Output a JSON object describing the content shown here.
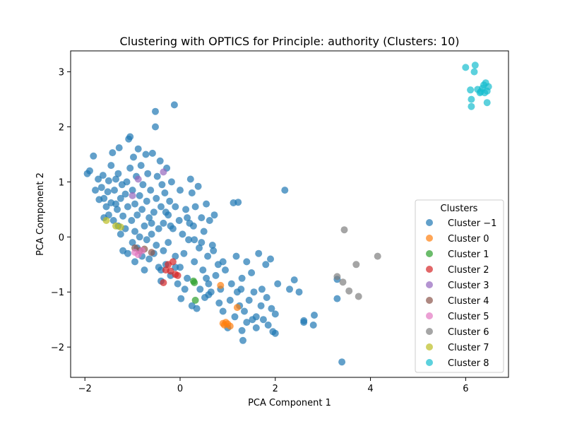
{
  "chart_data": {
    "type": "scatter",
    "title": "Clustering with OPTICS for Principle: authority (Clusters: 10)",
    "xlabel": "PCA Component 1",
    "ylabel": "PCA Component 2",
    "xlim": [
      -2.3,
      6.9
    ],
    "ylim": [
      -2.55,
      3.38
    ],
    "xticks": [
      -2,
      0,
      2,
      4,
      6
    ],
    "yticks": [
      -2,
      -1,
      0,
      1,
      2,
      3
    ],
    "xtick_labels": [
      "−2",
      "0",
      "2",
      "4",
      "6"
    ],
    "ytick_labels": [
      "−2",
      "−1",
      "0",
      "1",
      "2",
      "3"
    ],
    "grid": false,
    "legend": {
      "title": "Clusters",
      "placement": "lower-right"
    },
    "series": [
      {
        "name": "Cluster −1",
        "color": "#1f77b4",
        "points": [
          [
            -1.95,
            1.15
          ],
          [
            -1.9,
            1.2
          ],
          [
            -1.82,
            1.47
          ],
          [
            -1.78,
            0.85
          ],
          [
            -1.72,
            1.05
          ],
          [
            -1.7,
            0.68
          ],
          [
            -1.65,
            0.9
          ],
          [
            -1.62,
            1.12
          ],
          [
            -1.6,
            0.7
          ],
          [
            -1.55,
            0.55
          ],
          [
            -1.52,
            0.82
          ],
          [
            -1.5,
            1.02
          ],
          [
            -1.5,
            0.4
          ],
          [
            -1.45,
            0.62
          ],
          [
            -1.45,
            1.3
          ],
          [
            -1.42,
            1.53
          ],
          [
            -1.4,
            0.3
          ],
          [
            -1.38,
            0.85
          ],
          [
            -1.35,
            1.05
          ],
          [
            -1.32,
            0.5
          ],
          [
            -1.3,
            0.2
          ],
          [
            -1.3,
            1.15
          ],
          [
            -1.28,
            1.62
          ],
          [
            -1.25,
            0.7
          ],
          [
            -1.25,
            0.05
          ],
          [
            -1.22,
            0.95
          ],
          [
            -1.2,
            0.38
          ],
          [
            -1.2,
            -0.25
          ],
          [
            -1.15,
            0.78
          ],
          [
            -1.15,
            0.15
          ],
          [
            -1.12,
            1.0
          ],
          [
            -1.1,
            0.55
          ],
          [
            -1.08,
            1.78
          ],
          [
            -1.05,
            1.82
          ],
          [
            -1.05,
            1.25
          ],
          [
            -1.02,
            0.3
          ],
          [
            -1.0,
            0.85
          ],
          [
            -1.0,
            -0.1
          ],
          [
            -0.98,
            1.45
          ],
          [
            -0.95,
            0.6
          ],
          [
            -0.95,
            0.1
          ],
          [
            -0.95,
            -0.45
          ],
          [
            -0.92,
            1.1
          ],
          [
            -0.9,
            0.4
          ],
          [
            -0.9,
            -0.2
          ],
          [
            -0.88,
            1.6
          ],
          [
            -0.85,
            0.75
          ],
          [
            -0.85,
            0.0
          ],
          [
            -0.82,
            1.3
          ],
          [
            -0.8,
            0.5
          ],
          [
            -0.8,
            -0.35
          ],
          [
            -0.78,
            0.95
          ],
          [
            -0.75,
            0.2
          ],
          [
            -0.75,
            -0.6
          ],
          [
            -0.72,
            1.5
          ],
          [
            -0.7,
            0.65
          ],
          [
            -0.7,
            -0.05
          ],
          [
            -0.68,
            1.15
          ],
          [
            -0.65,
            0.35
          ],
          [
            -0.65,
            -0.4
          ],
          [
            -0.62,
            0.85
          ],
          [
            -0.6,
            0.05
          ],
          [
            -0.58,
            1.52
          ],
          [
            -0.55,
            0.45
          ],
          [
            -0.55,
            -0.3
          ],
          [
            -0.52,
            2.0
          ],
          [
            -0.52,
            2.28
          ],
          [
            -0.5,
            0.7
          ],
          [
            -0.48,
            1.1
          ],
          [
            -0.45,
            0.15
          ],
          [
            -0.45,
            -0.55
          ],
          [
            -0.42,
            1.38
          ],
          [
            -0.4,
            0.55
          ],
          [
            -0.4,
            -0.8
          ],
          [
            -0.38,
            0.95
          ],
          [
            -0.35,
            0.25
          ],
          [
            -0.35,
            -0.25
          ],
          [
            -0.32,
            0.8
          ],
          [
            -0.3,
            -0.5
          ],
          [
            -0.28,
            1.25
          ],
          [
            -0.25,
            0.4
          ],
          [
            -0.25,
            -0.1
          ],
          [
            -0.22,
            0.65
          ],
          [
            -0.2,
            -0.7
          ],
          [
            -0.18,
            1.0
          ],
          [
            -0.15,
            0.15
          ],
          [
            -0.12,
            2.4
          ],
          [
            -0.1,
            0.55
          ],
          [
            -0.1,
            -0.35
          ],
          [
            -0.05,
            -0.85
          ],
          [
            -0.02,
            0.3
          ],
          [
            0.0,
            -0.55
          ],
          [
            0.02,
            -1.12
          ],
          [
            0.05,
            0.05
          ],
          [
            0.08,
            -0.3
          ],
          [
            0.12,
            0.5
          ],
          [
            0.15,
            -0.75
          ],
          [
            0.18,
            -0.05
          ],
          [
            0.22,
            1.05
          ],
          [
            0.25,
            0.8
          ],
          [
            0.25,
            -1.25
          ],
          [
            0.28,
            0.2
          ],
          [
            0.3,
            -0.45
          ],
          [
            0.32,
            0.55
          ],
          [
            0.35,
            -1.3
          ],
          [
            0.38,
            0.92
          ],
          [
            0.4,
            -0.2
          ],
          [
            0.42,
            -0.95
          ],
          [
            0.45,
            0.35
          ],
          [
            0.48,
            -0.6
          ],
          [
            0.5,
            0.1
          ],
          [
            0.52,
            -1.1
          ],
          [
            0.55,
            0.6
          ],
          [
            0.58,
            -0.35
          ],
          [
            0.6,
            -0.85
          ],
          [
            0.62,
            0.3
          ],
          [
            0.65,
            -1.0
          ],
          [
            0.68,
            -0.15
          ],
          [
            0.72,
            0.4
          ],
          [
            0.75,
            -0.7
          ],
          [
            0.8,
            -0.5
          ],
          [
            0.82,
            -1.2
          ],
          [
            0.85,
            -0.95
          ],
          [
            0.9,
            -1.35
          ],
          [
            0.95,
            -0.6
          ],
          [
            1.0,
            -1.65
          ],
          [
            1.05,
            -1.15
          ],
          [
            1.08,
            -0.85
          ],
          [
            1.12,
            0.62
          ],
          [
            1.15,
            -1.45
          ],
          [
            1.18,
            -0.35
          ],
          [
            1.2,
            -1.0
          ],
          [
            1.22,
            0.63
          ],
          [
            1.25,
            -1.25
          ],
          [
            1.28,
            -0.95
          ],
          [
            1.3,
            -1.7
          ],
          [
            1.32,
            -1.88
          ],
          [
            1.35,
            -1.35
          ],
          [
            1.4,
            -0.45
          ],
          [
            1.45,
            -1.15
          ],
          [
            1.5,
            -0.65
          ],
          [
            1.52,
            -1.5
          ],
          [
            1.55,
            -1.0
          ],
          [
            1.6,
            -1.65
          ],
          [
            1.65,
            -0.3
          ],
          [
            1.7,
            -1.25
          ],
          [
            1.72,
            -0.95
          ],
          [
            1.75,
            -1.5
          ],
          [
            1.8,
            -0.5
          ],
          [
            1.82,
            -1.1
          ],
          [
            1.85,
            -1.6
          ],
          [
            1.9,
            -0.4
          ],
          [
            1.92,
            -1.3
          ],
          [
            1.95,
            -1.72
          ],
          [
            2.0,
            -1.75
          ],
          [
            2.0,
            -1.4
          ],
          [
            2.05,
            -0.85
          ],
          [
            2.2,
            0.85
          ],
          [
            2.4,
            -0.78
          ],
          [
            2.5,
            -1.0
          ],
          [
            2.6,
            -1.55
          ],
          [
            2.6,
            -1.52
          ],
          [
            2.8,
            -1.6
          ],
          [
            2.82,
            -1.42
          ],
          [
            3.3,
            -0.77
          ],
          [
            3.3,
            -1.12
          ],
          [
            3.4,
            -2.27
          ],
          [
            -0.5,
            -0.15
          ],
          [
            -0.4,
            -0.6
          ],
          [
            0.1,
            -0.95
          ],
          [
            0.2,
            0.25
          ],
          [
            0.0,
            0.85
          ],
          [
            0.3,
            -0.05
          ],
          [
            0.45,
            -0.1
          ],
          [
            -1.6,
            0.35
          ],
          [
            -1.35,
            0.6
          ],
          [
            -1.1,
            -0.3
          ],
          [
            -0.6,
            0.25
          ],
          [
            -0.3,
            0.45
          ],
          [
            0.6,
            -1.05
          ],
          [
            1.4,
            -1.55
          ],
          [
            1.6,
            -1.45
          ],
          [
            0.7,
            -0.25
          ],
          [
            0.55,
            -0.75
          ],
          [
            -0.2,
            0.2
          ],
          [
            0.15,
            0.35
          ],
          [
            -0.1,
            -0.55
          ],
          [
            0.9,
            -0.45
          ],
          [
            1.3,
            -0.75
          ],
          [
            2.3,
            -0.95
          ]
        ]
      },
      {
        "name": "Cluster 0",
        "color": "#ff7f0e",
        "points": [
          [
            0.85,
            -0.88
          ],
          [
            0.9,
            -1.57
          ],
          [
            0.93,
            -1.6
          ],
          [
            0.96,
            -1.55
          ],
          [
            1.0,
            -1.58
          ],
          [
            1.05,
            -1.62
          ],
          [
            1.2,
            -1.28
          ]
        ]
      },
      {
        "name": "Cluster 1",
        "color": "#2ca02c",
        "points": [
          [
            0.28,
            -0.8
          ],
          [
            0.3,
            -0.83
          ],
          [
            0.32,
            -1.15
          ]
        ]
      },
      {
        "name": "Cluster 2",
        "color": "#d62728",
        "points": [
          [
            -0.35,
            -0.83
          ],
          [
            -0.3,
            -0.6
          ],
          [
            -0.25,
            -0.5
          ],
          [
            -0.2,
            -0.62
          ],
          [
            -0.15,
            -0.45
          ],
          [
            -0.1,
            -0.68
          ],
          [
            -0.05,
            -0.7
          ]
        ]
      },
      {
        "name": "Cluster 3",
        "color": "#9467bd",
        "points": [
          [
            -1.0,
            0.75
          ],
          [
            -0.88,
            1.05
          ],
          [
            -0.35,
            1.18
          ]
        ]
      },
      {
        "name": "Cluster 4",
        "color": "#8c564b",
        "points": [
          [
            -0.95,
            -0.2
          ],
          [
            -0.85,
            -0.25
          ],
          [
            -0.75,
            -0.22
          ],
          [
            -0.6,
            -0.28
          ]
        ]
      },
      {
        "name": "Cluster 5",
        "color": "#e377c2",
        "points": [
          [
            -0.95,
            -0.28
          ],
          [
            -0.88,
            -0.32
          ],
          [
            -0.8,
            -0.25
          ]
        ]
      },
      {
        "name": "Cluster 6",
        "color": "#7f7f7f",
        "points": [
          [
            3.3,
            -0.72
          ],
          [
            3.42,
            -0.82
          ],
          [
            3.45,
            0.13
          ],
          [
            3.55,
            -0.98
          ],
          [
            3.7,
            -0.5
          ],
          [
            3.75,
            -1.08
          ],
          [
            4.15,
            -0.35
          ]
        ]
      },
      {
        "name": "Cluster 7",
        "color": "#bcbd22",
        "points": [
          [
            -1.55,
            0.3
          ],
          [
            -1.35,
            0.2
          ],
          [
            -1.25,
            0.18
          ]
        ]
      },
      {
        "name": "Cluster 8",
        "color": "#17becf",
        "points": [
          [
            6.0,
            3.08
          ],
          [
            6.1,
            2.67
          ],
          [
            6.12,
            2.5
          ],
          [
            6.12,
            2.37
          ],
          [
            6.18,
            3.0
          ],
          [
            6.2,
            3.12
          ],
          [
            6.25,
            2.68
          ],
          [
            6.3,
            2.62
          ],
          [
            6.35,
            2.7
          ],
          [
            6.38,
            2.76
          ],
          [
            6.4,
            2.62
          ],
          [
            6.42,
            2.8
          ],
          [
            6.45,
            2.65
          ],
          [
            6.48,
            2.73
          ],
          [
            6.45,
            2.44
          ],
          [
            6.32,
            2.64
          ]
        ]
      }
    ]
  }
}
